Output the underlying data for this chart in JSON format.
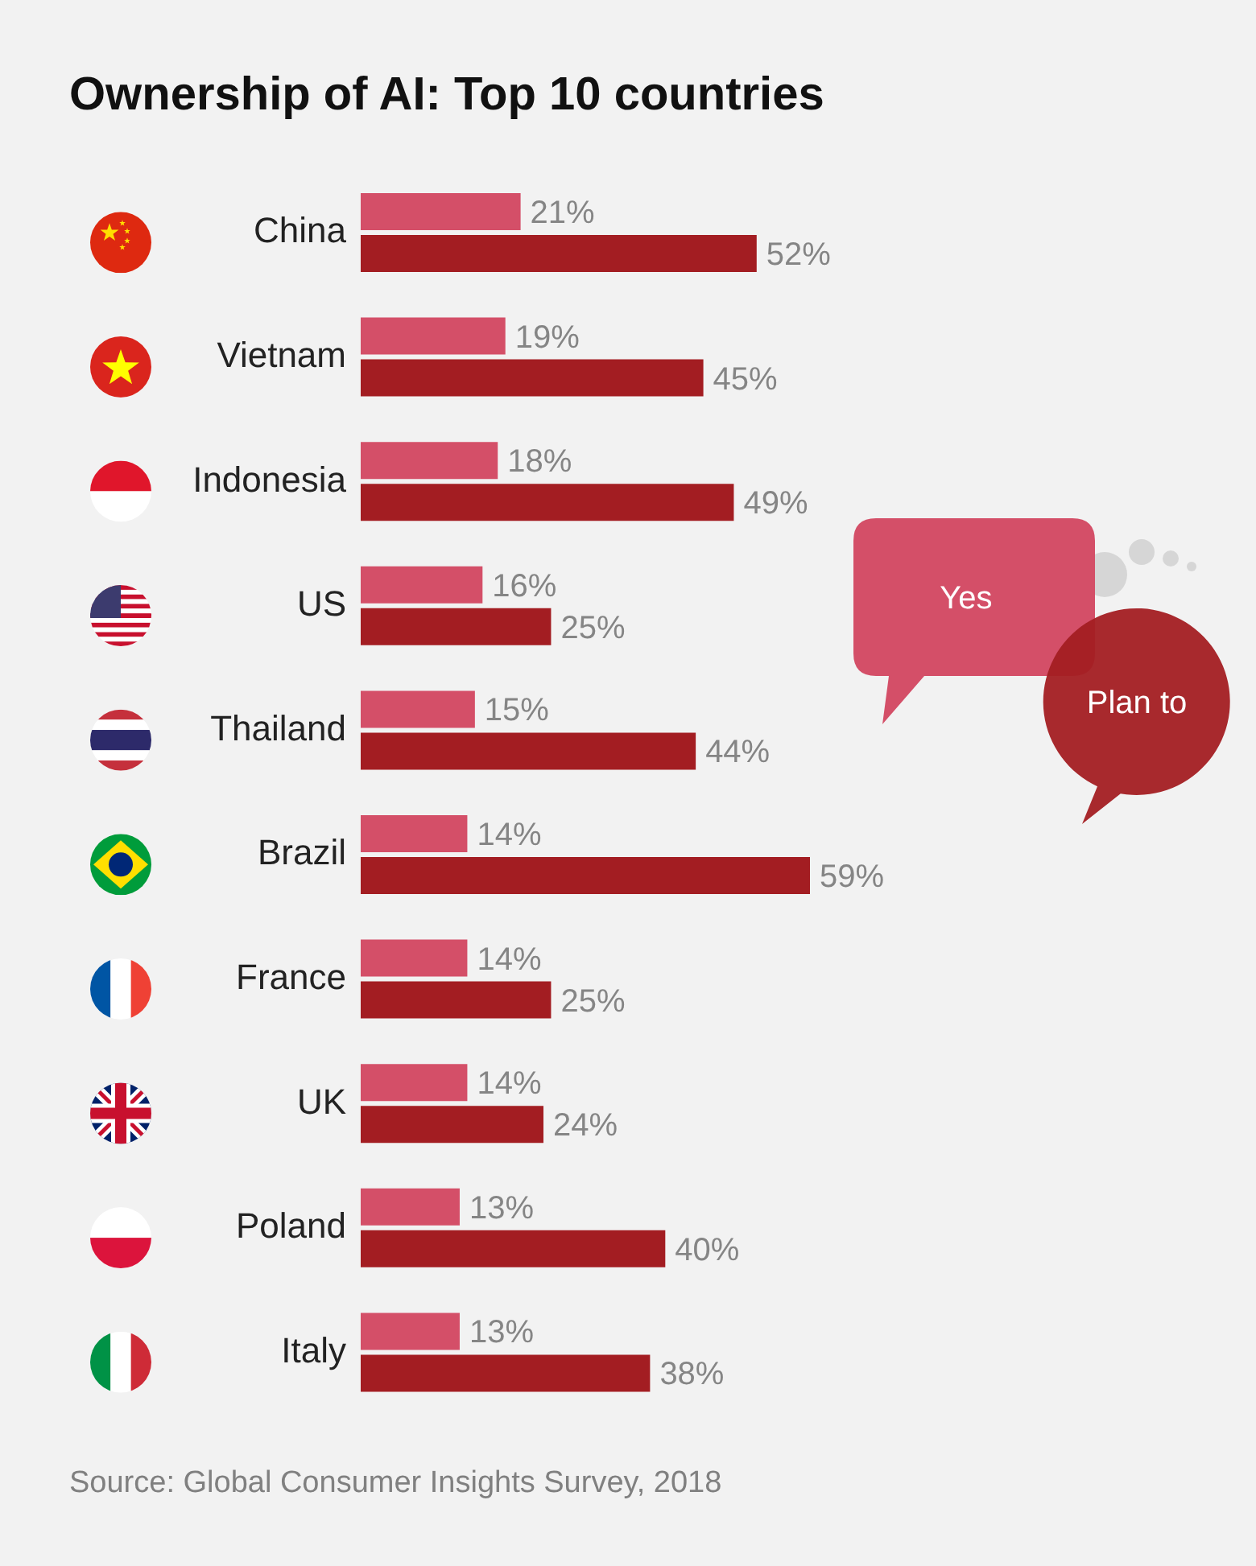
{
  "chart_data": {
    "type": "bar",
    "orientation": "horizontal",
    "title": "Ownership of AI: Top 10 countries",
    "categories": [
      "China",
      "Vietnam",
      "Indonesia",
      "US",
      "Thailand",
      "Brazil",
      "France",
      "UK",
      "Poland",
      "Italy"
    ],
    "series": [
      {
        "name": "Yes",
        "color": "#d44f68",
        "values": [
          21,
          19,
          18,
          16,
          15,
          14,
          14,
          14,
          13,
          13
        ],
        "value_labels": [
          "21%",
          "19%",
          "18%",
          "16%",
          "15%",
          "14%",
          "14%",
          "14%",
          "13%",
          "13%"
        ]
      },
      {
        "name": "Plan to",
        "color": "#a31d22",
        "values": [
          52,
          45,
          49,
          25,
          44,
          59,
          25,
          24,
          40,
          38
        ],
        "value_labels": [
          "52%",
          "45%",
          "49%",
          "25%",
          "44%",
          "59%",
          "25%",
          "24%",
          "40%",
          "38%"
        ]
      }
    ],
    "legend": "right",
    "tick_labels": "y",
    "annotations": [
      "Source: Global Consumer Insights Survey, 2018"
    ]
  }
}
